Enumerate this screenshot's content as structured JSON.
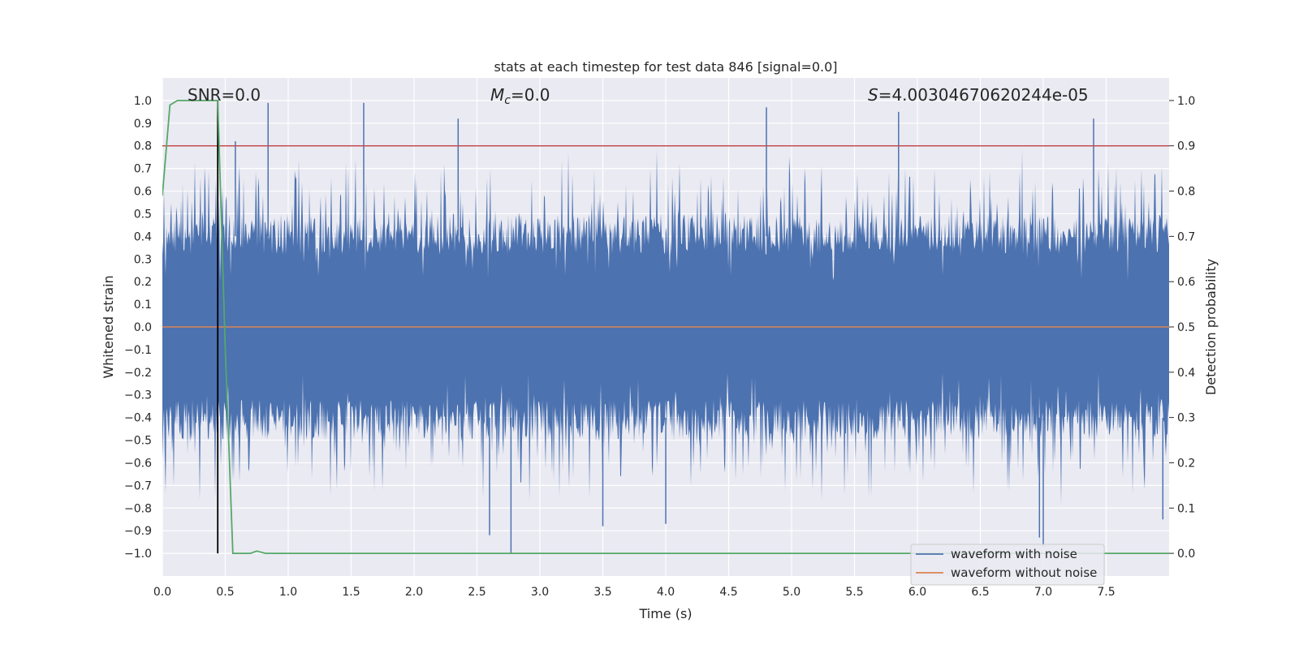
{
  "chart_data": {
    "type": "line",
    "title": "stats at each timestep for test data 846 [signal=0.0]",
    "xlabel": "Time (s)",
    "ylabel": "Whitened strain",
    "ylabel_right": "Detection probability",
    "xlim": [
      0.0,
      8.0
    ],
    "ylim": [
      -1.1,
      1.1
    ],
    "ylim_right": [
      -0.05,
      1.05
    ],
    "x_ticks": [
      0.0,
      0.5,
      1.0,
      1.5,
      2.0,
      2.5,
      3.0,
      3.5,
      4.0,
      4.5,
      5.0,
      5.5,
      6.0,
      6.5,
      7.0,
      7.5
    ],
    "x_tick_labels": [
      "0.0",
      "0.5",
      "1.0",
      "1.5",
      "2.0",
      "2.5",
      "3.0",
      "3.5",
      "4.0",
      "4.5",
      "5.0",
      "5.5",
      "6.0",
      "6.5",
      "7.0",
      "7.5"
    ],
    "y_ticks": [
      -1.0,
      -0.9,
      -0.8,
      -0.7,
      -0.6,
      -0.5,
      -0.4,
      -0.3,
      -0.2,
      -0.1,
      0.0,
      0.1,
      0.2,
      0.3,
      0.4,
      0.5,
      0.6,
      0.7,
      0.8,
      0.9,
      1.0
    ],
    "y_tick_labels": [
      "−1.0",
      "−0.9",
      "−0.8",
      "−0.7",
      "−0.6",
      "−0.5",
      "−0.4",
      "−0.3",
      "−0.2",
      "−0.1",
      "0.0",
      "0.1",
      "0.2",
      "0.3",
      "0.4",
      "0.5",
      "0.6",
      "0.7",
      "0.8",
      "0.9",
      "1.0"
    ],
    "y_right_ticks": [
      0.0,
      0.1,
      0.2,
      0.3,
      0.4,
      0.5,
      0.6,
      0.7,
      0.8,
      0.9,
      1.0
    ],
    "y_right_tick_labels": [
      "0.0",
      "0.1",
      "0.2",
      "0.3",
      "0.4",
      "0.5",
      "0.6",
      "0.7",
      "0.8",
      "0.9",
      "1.0"
    ],
    "annotations": {
      "snr": "SNR=0.0",
      "mc_symbol": "M",
      "mc_sub": "c",
      "mc_rest": "=0.0",
      "s_symbol": "S",
      "s_rest": "=4.00304670620244e-05"
    },
    "threshold_right": 0.9,
    "marker_x": 0.44,
    "legend": [
      {
        "label": "waveform with noise",
        "color": "#4c72b0"
      },
      {
        "label": "waveform without noise",
        "color": "#dd8452"
      }
    ],
    "series": [
      {
        "name": "waveform with noise",
        "color": "#4c72b0",
        "description": "dense noise, envelope approx ±0.4 to ±0.6 with spikes up to 1.0 and down to -1.0",
        "spikes_up": [
          [
            0.84,
            0.99
          ],
          [
            1.6,
            0.99
          ],
          [
            4.8,
            0.97
          ],
          [
            5.85,
            0.95
          ],
          [
            7.4,
            0.92
          ],
          [
            2.35,
            0.92
          ],
          [
            0.58,
            0.82
          ]
        ],
        "spikes_down": [
          [
            2.77,
            -1.0
          ],
          [
            2.6,
            -0.92
          ],
          [
            6.97,
            -0.93
          ],
          [
            7.0,
            -0.97
          ],
          [
            4.0,
            -0.87
          ],
          [
            3.5,
            -0.88
          ],
          [
            7.95,
            -0.85
          ]
        ]
      },
      {
        "name": "waveform without noise",
        "color": "#dd8452",
        "x": [
          0.0,
          8.0
        ],
        "y": [
          0.0,
          0.0
        ]
      },
      {
        "name": "Detection probability",
        "color": "#55a868",
        "axis": "right",
        "x": [
          0.0,
          0.06,
          0.12,
          0.2,
          0.3,
          0.44,
          0.5,
          0.56,
          0.7,
          0.75,
          0.82,
          1.0,
          8.0
        ],
        "y": [
          0.79,
          0.99,
          1.0,
          1.0,
          1.0,
          1.0,
          0.45,
          0.0,
          0.0,
          0.005,
          0.0,
          0.0,
          0.0
        ]
      }
    ]
  }
}
